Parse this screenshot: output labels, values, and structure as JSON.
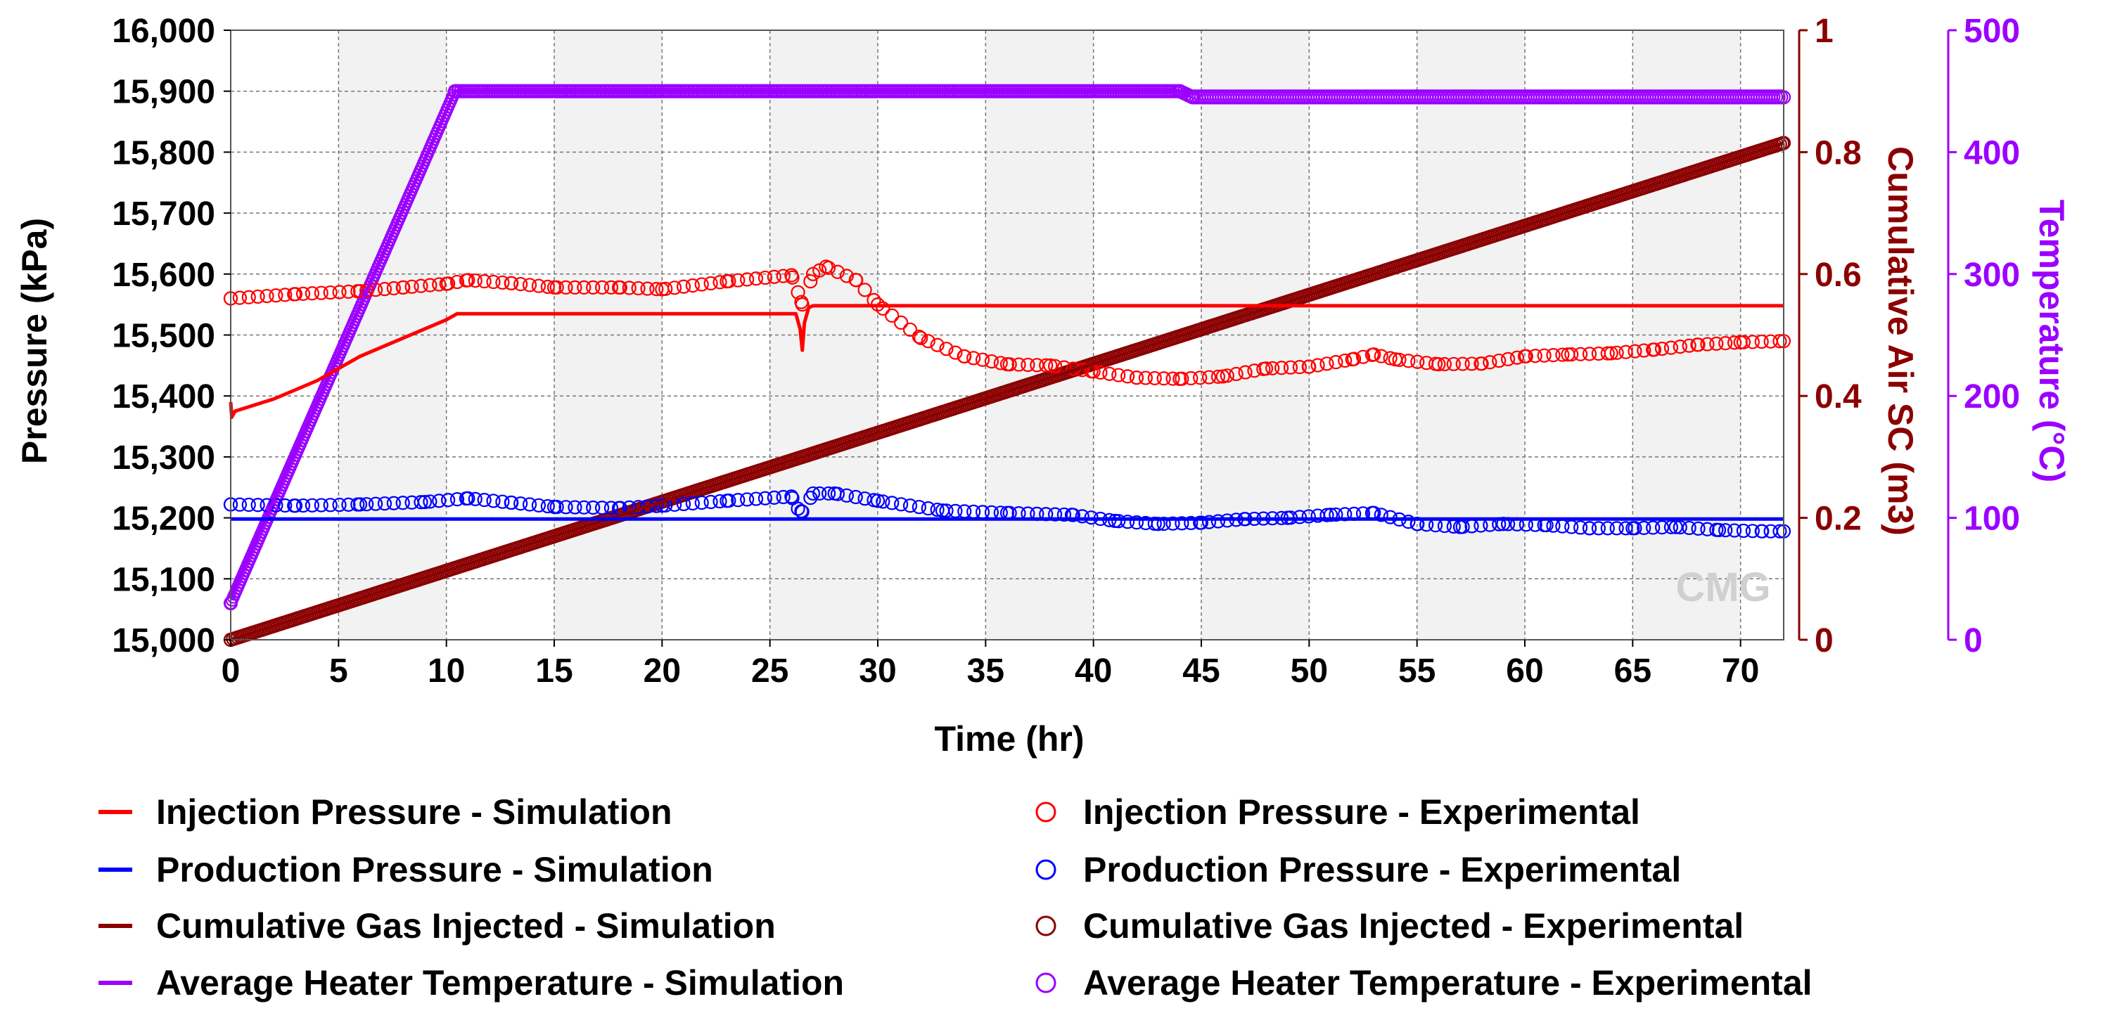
{
  "chart_data": {
    "type": "line",
    "xlabel": "Time (hr)",
    "xlim": [
      0,
      72
    ],
    "xticks": [
      0,
      5,
      10,
      15,
      20,
      25,
      30,
      35,
      40,
      45,
      50,
      55,
      60,
      65,
      70
    ],
    "grid": true,
    "watermark": "CMG",
    "legend_position": "bottom",
    "axes": {
      "left": {
        "label": "Pressure (kPa)",
        "range": [
          15000,
          16000
        ],
        "ticks": [
          15000,
          15100,
          15200,
          15300,
          15400,
          15500,
          15600,
          15700,
          15800,
          15900,
          16000
        ],
        "tick_labels": [
          "15,000",
          "15,100",
          "15,200",
          "15,300",
          "15,400",
          "15,500",
          "15,600",
          "15,700",
          "15,800",
          "15,900",
          "16,000"
        ],
        "color": "#000000"
      },
      "right1": {
        "label": "Cumulative Air SC (m3)",
        "range": [
          0,
          1
        ],
        "ticks": [
          0,
          0.2,
          0.4,
          0.6,
          0.8,
          1
        ],
        "tick_labels": [
          "0",
          "0.2",
          "0.4",
          "0.6",
          "0.8",
          "1"
        ],
        "color": "#8b0000"
      },
      "right2": {
        "label": "Temperature (°C)",
        "range": [
          0,
          500
        ],
        "ticks": [
          0,
          100,
          200,
          300,
          400,
          500
        ],
        "tick_labels": [
          "0",
          "100",
          "200",
          "300",
          "400",
          "500"
        ],
        "color": "#9b00ff"
      }
    },
    "series": [
      {
        "name": "Injection Pressure - Simulation",
        "axis": "left",
        "style": "line",
        "color": "#ff0000",
        "x": [
          0,
          0.05,
          0.2,
          2,
          4,
          6,
          8,
          10,
          10.5,
          15,
          20,
          25,
          26.2,
          26.4,
          26.5,
          26.6,
          26.8,
          27,
          30,
          40,
          50,
          60,
          70,
          72
        ],
        "y": [
          15390,
          15365,
          15375,
          15395,
          15425,
          15465,
          15495,
          15525,
          15535,
          15535,
          15535,
          15535,
          15535,
          15510,
          15475,
          15520,
          15545,
          15548,
          15548,
          15548,
          15548,
          15548,
          15548,
          15548
        ]
      },
      {
        "name": "Production Pressure - Simulation",
        "axis": "left",
        "style": "line",
        "color": "#0000ff",
        "x": [
          0,
          72
        ],
        "y": [
          15198,
          15198
        ]
      },
      {
        "name": "Cumulative Gas Injected - Simulation",
        "axis": "right1",
        "style": "line",
        "color": "#8b0000",
        "x": [
          0,
          72
        ],
        "y": [
          0,
          0.815
        ]
      },
      {
        "name": "Average Heater Temperature - Simulation",
        "axis": "right2",
        "style": "line",
        "color": "#9b00ff",
        "x": [
          0,
          10.4,
          72
        ],
        "y": [
          35,
          450,
          450
        ]
      },
      {
        "name": "Injection Pressure - Experimental",
        "axis": "left",
        "style": "markers",
        "color": "#ff0000",
        "x": [
          0,
          3,
          6,
          8,
          10,
          11,
          13,
          15,
          18,
          20,
          23,
          26,
          26.3,
          26.5,
          27,
          27.6,
          29,
          30,
          32,
          34,
          36,
          38,
          40,
          42,
          44,
          46,
          48,
          50,
          52,
          53,
          54,
          56,
          58,
          60,
          62,
          64,
          66,
          68,
          70,
          72
        ],
        "y": [
          15560,
          15567,
          15572,
          15578,
          15584,
          15590,
          15585,
          15578,
          15578,
          15575,
          15588,
          15598,
          15570,
          15550,
          15600,
          15612,
          15590,
          15550,
          15495,
          15465,
          15452,
          15450,
          15440,
          15430,
          15428,
          15432,
          15445,
          15448,
          15460,
          15468,
          15460,
          15452,
          15453,
          15465,
          15468,
          15470,
          15476,
          15484,
          15488,
          15490
        ]
      },
      {
        "name": "Production Pressure - Experimental",
        "axis": "left",
        "style": "markers",
        "color": "#0000ff",
        "x": [
          0,
          3,
          6,
          9,
          11,
          13,
          15,
          18,
          20,
          23,
          26,
          26.3,
          26.5,
          27,
          28,
          30,
          33,
          36,
          39,
          41,
          43,
          45,
          47,
          49,
          51,
          53,
          55,
          57,
          59,
          61,
          63,
          65,
          67,
          69,
          71,
          72
        ],
        "y": [
          15222,
          15220,
          15222,
          15226,
          15232,
          15225,
          15218,
          15216,
          15220,
          15228,
          15235,
          15215,
          15210,
          15240,
          15240,
          15228,
          15212,
          15208,
          15205,
          15195,
          15190,
          15192,
          15198,
          15200,
          15205,
          15208,
          15190,
          15185,
          15190,
          15188,
          15183,
          15183,
          15185,
          15180,
          15178,
          15178
        ]
      },
      {
        "name": "Cumulative Gas Injected - Experimental",
        "axis": "right1",
        "style": "markers",
        "color": "#8b0000",
        "x": [
          0,
          72
        ],
        "y": [
          0,
          0.815
        ]
      },
      {
        "name": "Average Heater Temperature - Experimental",
        "axis": "right2",
        "style": "markers",
        "color": "#9b00ff",
        "x": [
          0,
          10.4,
          44,
          44.6,
          72
        ],
        "y": [
          30,
          450,
          450,
          445,
          445
        ]
      }
    ]
  }
}
